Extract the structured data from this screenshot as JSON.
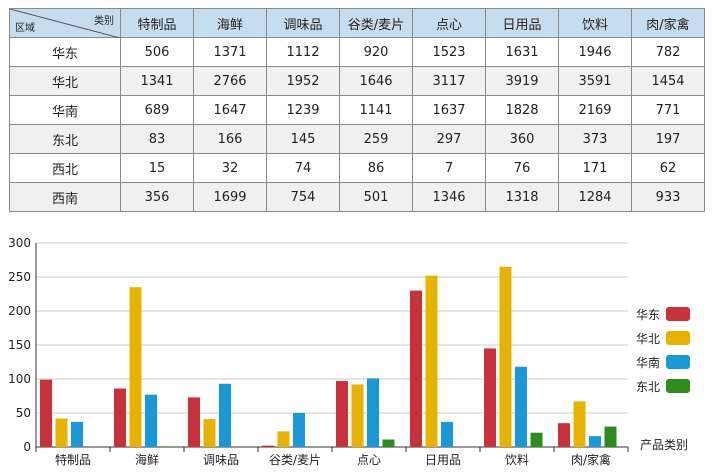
{
  "table": {
    "corner": {
      "column_header": "类别",
      "row_header": "区域"
    },
    "columns": [
      "特制品",
      "海鲜",
      "调味品",
      "谷类/麦片",
      "点心",
      "日用品",
      "饮料",
      "肉/家禽"
    ],
    "rows": [
      {
        "region": "华东",
        "values": [
          506,
          1371,
          1112,
          920,
          1523,
          1631,
          1946,
          782
        ]
      },
      {
        "region": "华北",
        "values": [
          1341,
          2766,
          1952,
          1646,
          3117,
          3919,
          3591,
          1454
        ]
      },
      {
        "region": "华南",
        "values": [
          689,
          1647,
          1239,
          1141,
          1637,
          1828,
          2169,
          771
        ]
      },
      {
        "region": "东北",
        "values": [
          83,
          166,
          145,
          259,
          297,
          360,
          373,
          197
        ]
      },
      {
        "region": "西北",
        "values": [
          15,
          32,
          74,
          86,
          7,
          76,
          171,
          62
        ]
      },
      {
        "region": "西南",
        "values": [
          356,
          1699,
          754,
          501,
          1346,
          1318,
          1284,
          933
        ]
      }
    ]
  },
  "chart_data": {
    "type": "bar",
    "categories": [
      "特制品",
      "海鲜",
      "调味品",
      "谷类/麦片",
      "点心",
      "日用品",
      "饮料",
      "肉/家禽"
    ],
    "series": [
      {
        "name": "华东",
        "color": "#c8323c",
        "values": [
          99,
          86,
          73,
          2,
          97,
          230,
          145,
          35
        ]
      },
      {
        "name": "华北",
        "color": "#e6b400",
        "values": [
          42,
          235,
          41,
          23,
          92,
          252,
          265,
          67
        ]
      },
      {
        "name": "华南",
        "color": "#1a99d8",
        "values": [
          37,
          77,
          93,
          50,
          101,
          37,
          118,
          16
        ]
      },
      {
        "name": "东北",
        "color": "#2e8b1e",
        "values": [
          0,
          1,
          0,
          0,
          11,
          0,
          21,
          30
        ]
      }
    ],
    "ylim": [
      0,
      300
    ],
    "yticks": [
      0,
      50,
      100,
      150,
      200,
      250,
      300
    ],
    "xlabel": "产品类别",
    "ylabel": "",
    "grid": true,
    "legend_position": "right"
  }
}
